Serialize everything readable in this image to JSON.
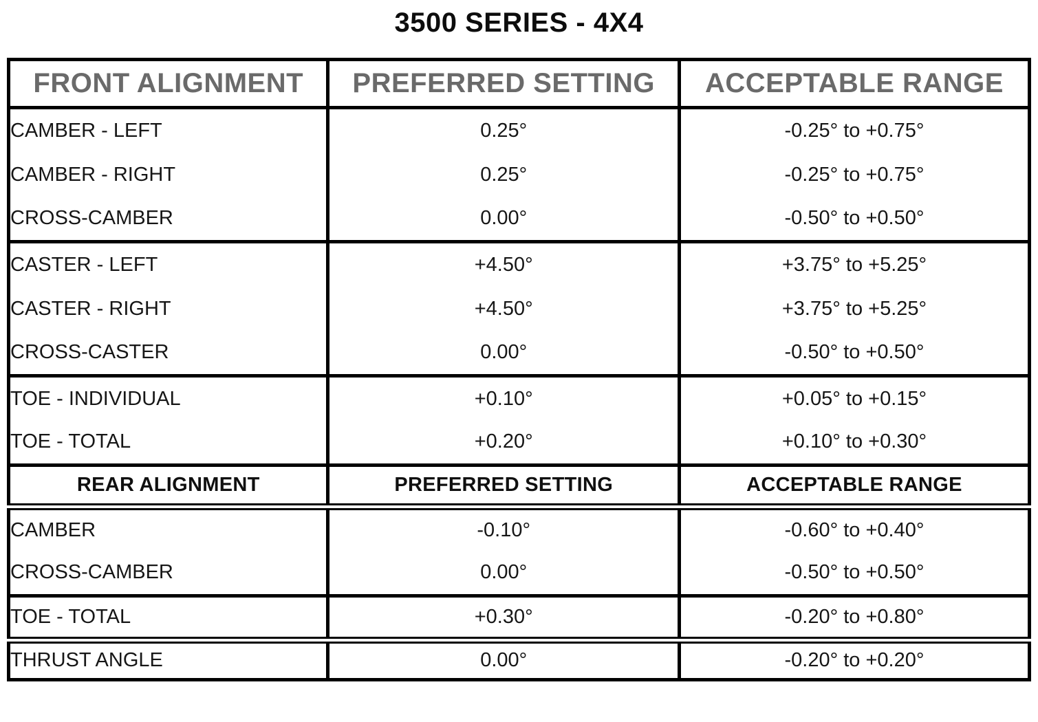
{
  "page_title": "3500 SERIES - 4X4",
  "colors": {
    "border": "#000000",
    "front_header_text": "#6a6a6a",
    "rear_header_text": "#101010",
    "body_text": "#161616",
    "background": "#ffffff"
  },
  "table": {
    "front_header": {
      "col1": "FRONT ALIGNMENT",
      "col2": "PREFERRED SETTING",
      "col3": "ACCEPTABLE RANGE"
    },
    "rear_header": {
      "col1": "REAR ALIGNMENT",
      "col2": "PREFERRED SETTING",
      "col3": "ACCEPTABLE RANGE"
    },
    "front_sections": [
      {
        "rows": [
          {
            "label": "CAMBER - LEFT",
            "preferred": "0.25°",
            "range": "-0.25° to +0.75°"
          },
          {
            "label": "CAMBER - RIGHT",
            "preferred": "0.25°",
            "range": "-0.25° to +0.75°"
          },
          {
            "label": "CROSS-CAMBER",
            "preferred": "0.00°",
            "range": "-0.50° to +0.50°"
          }
        ]
      },
      {
        "rows": [
          {
            "label": "CASTER - LEFT",
            "preferred": "+4.50°",
            "range": "+3.75° to +5.25°"
          },
          {
            "label": "CASTER - RIGHT",
            "preferred": "+4.50°",
            "range": "+3.75° to +5.25°"
          },
          {
            "label": "CROSS-CASTER",
            "preferred": "0.00°",
            "range": "-0.50° to +0.50°"
          }
        ]
      },
      {
        "rows": [
          {
            "label": "TOE - INDIVIDUAL",
            "preferred": "+0.10°",
            "range": "+0.05° to +0.15°"
          },
          {
            "label": "TOE - TOTAL",
            "preferred": "+0.20°",
            "range": "+0.10° to +0.30°"
          }
        ]
      }
    ],
    "rear_sections": [
      {
        "rows": [
          {
            "label": "CAMBER",
            "preferred": "-0.10°",
            "range": "-0.60° to +0.40°"
          },
          {
            "label": "CROSS-CAMBER",
            "preferred": "0.00°",
            "range": "-0.50° to +0.50°"
          }
        ]
      },
      {
        "rows": [
          {
            "label": "TOE - TOTAL",
            "preferred": "+0.30°",
            "range": "-0.20° to +0.80°"
          }
        ]
      },
      {
        "rows": [
          {
            "label": "THRUST ANGLE",
            "preferred": "0.00°",
            "range": "-0.20° to +0.20°"
          }
        ]
      }
    ]
  }
}
